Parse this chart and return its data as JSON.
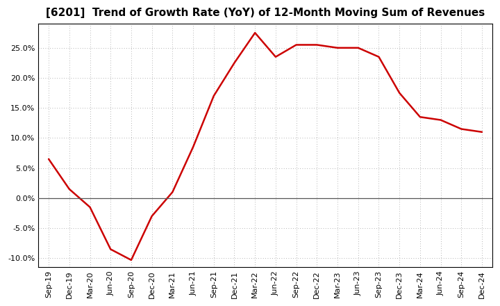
{
  "title": "[6201]  Trend of Growth Rate (YoY) of 12-Month Moving Sum of Revenues",
  "line_color": "#cc0000",
  "background_color": "#ffffff",
  "plot_bg_color": "#ffffff",
  "grid_color": "#999999",
  "zero_line_color": "#555555",
  "border_color": "#000000",
  "x_labels": [
    "Sep-19",
    "Dec-19",
    "Mar-20",
    "Jun-20",
    "Sep-20",
    "Dec-20",
    "Mar-21",
    "Jun-21",
    "Sep-21",
    "Dec-21",
    "Mar-22",
    "Jun-22",
    "Sep-22",
    "Dec-22",
    "Mar-23",
    "Jun-23",
    "Sep-23",
    "Dec-23",
    "Mar-24",
    "Jun-24",
    "Sep-24",
    "Dec-24"
  ],
  "y_values": [
    6.5,
    1.5,
    -1.5,
    -8.5,
    -10.3,
    -3.0,
    1.0,
    8.5,
    17.0,
    22.5,
    27.5,
    23.5,
    25.5,
    25.5,
    25.0,
    25.0,
    23.5,
    17.5,
    13.5,
    13.0,
    11.5,
    11.0
  ],
  "ylim": [
    -11.5,
    29
  ],
  "yticks": [
    -10.0,
    -5.0,
    0.0,
    5.0,
    10.0,
    15.0,
    20.0,
    25.0
  ],
  "title_fontsize": 11,
  "tick_fontsize": 8,
  "line_width": 1.8
}
